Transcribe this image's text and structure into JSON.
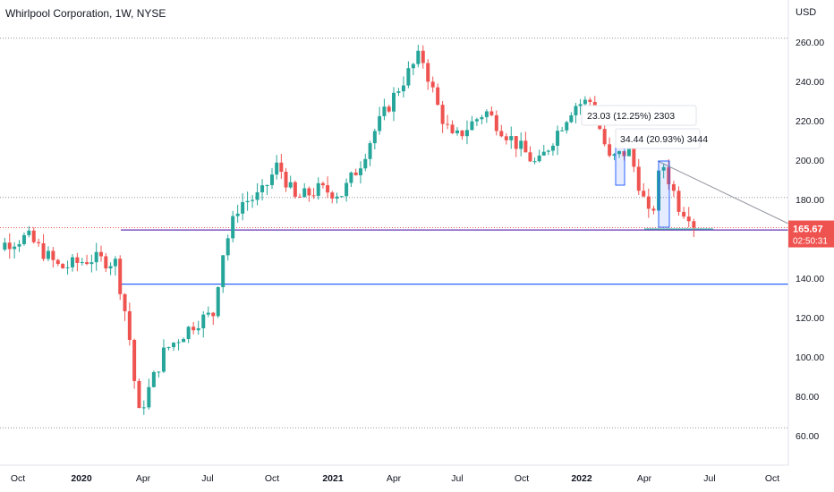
{
  "header": {
    "title": "Whirlpool Corporation, 1W, NYSE",
    "currency": "USD"
  },
  "price_badge": {
    "price": "165.67",
    "countdown": "02:50:31",
    "color": "#ef5350"
  },
  "colors": {
    "up": "#26a69a",
    "down": "#ef5350",
    "purple_line": "#7e57c2",
    "blue_line": "#2962ff",
    "projection": "#9598a1"
  },
  "annotations": {
    "measure_1": "23.03 (12.25%) 2303",
    "measure_2": "34.44 (20.93%) 3444"
  },
  "chart_data": {
    "type": "candlestick",
    "title": "Whirlpool Corporation, 1W, NYSE",
    "ylabel": "USD",
    "ylim": [
      50,
      270
    ],
    "y_ticks": [
      "260.00",
      "240.00",
      "220.00",
      "200.00",
      "180.00",
      "160.00",
      "140.00",
      "120.00",
      "100.00",
      "80.00",
      "60.00"
    ],
    "x_ticks": [
      "Oct",
      "2020",
      "Apr",
      "Jul",
      "Oct",
      "2021",
      "Apr",
      "Jul",
      "Oct",
      "2022",
      "Apr",
      "Jul",
      "Oct"
    ],
    "last_price": 165.67,
    "horizontal_levels": [
      {
        "price": 262,
        "style": "dotted"
      },
      {
        "price": 181,
        "style": "dotted"
      },
      {
        "price": 64,
        "style": "dotted"
      },
      {
        "price": 164.5,
        "style": "solid-purple"
      },
      {
        "price": 137,
        "style": "solid-blue"
      }
    ],
    "anchor_points": [
      [
        "2019-08-01",
        152
      ],
      [
        "2019-09-15",
        158
      ],
      [
        "2019-10-15",
        161
      ],
      [
        "2019-12-01",
        145
      ],
      [
        "2020-01-15",
        150
      ],
      [
        "2020-02-20",
        148
      ],
      [
        "2020-03-10",
        115
      ],
      [
        "2020-03-25",
        70
      ],
      [
        "2020-05-01",
        103
      ],
      [
        "2020-06-15",
        118
      ],
      [
        "2020-07-10",
        122
      ],
      [
        "2020-07-20",
        150
      ],
      [
        "2020-08-15",
        178
      ],
      [
        "2020-09-15",
        182
      ],
      [
        "2020-10-10",
        198
      ],
      [
        "2020-11-05",
        180
      ],
      [
        "2020-12-10",
        185
      ],
      [
        "2021-01-15",
        183
      ],
      [
        "2021-02-10",
        198
      ],
      [
        "2021-03-01",
        213
      ],
      [
        "2021-04-10",
        238
      ],
      [
        "2021-05-10",
        254
      ],
      [
        "2021-06-05",
        225
      ],
      [
        "2021-06-25",
        210
      ],
      [
        "2021-08-10",
        225
      ],
      [
        "2021-09-10",
        213
      ],
      [
        "2021-10-25",
        197
      ],
      [
        "2021-11-20",
        212
      ],
      [
        "2021-12-20",
        228
      ],
      [
        "2022-01-15",
        230
      ],
      [
        "2022-02-10",
        200
      ],
      [
        "2022-03-10",
        205
      ],
      [
        "2022-04-10",
        168
      ],
      [
        "2022-04-25",
        200
      ],
      [
        "2022-05-20",
        176
      ],
      [
        "2022-06-06",
        172
      ],
      [
        "2022-06-13",
        165.67
      ]
    ]
  }
}
